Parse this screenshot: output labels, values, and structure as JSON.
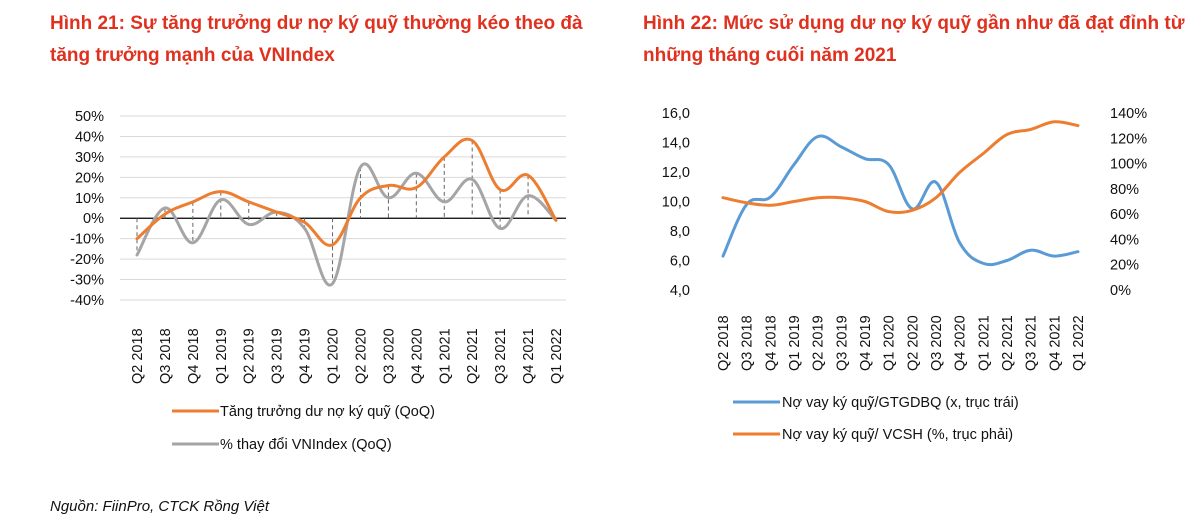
{
  "figures": {
    "left_title": "Hình 21: Sự tăng trưởng dư nợ ký quỹ thường kéo theo đà tăng trưởng mạnh của VNIndex",
    "right_title": "Hình 22: Mức sử dụng dư nợ ký quỹ gần như đã đạt đỉnh từ những tháng cuối năm 2021"
  },
  "source": "Nguồn: FiinPro, CTCK Rồng Việt",
  "colors": {
    "title": "#e0311f",
    "orange": "#ed7d31",
    "gray": "#a5a5a5",
    "blue": "#5b9bd5"
  },
  "chart_data": [
    {
      "type": "line",
      "title": "",
      "categories": [
        "Q2 2018",
        "Q3 2018",
        "Q4 2018",
        "Q1 2019",
        "Q2 2019",
        "Q3 2019",
        "Q4 2019",
        "Q1 2020",
        "Q2 2020",
        "Q3 2020",
        "Q4 2020",
        "Q1 2021",
        "Q2 2021",
        "Q3 2021",
        "Q4 2021",
        "Q1 2022"
      ],
      "y_ticks": [
        "50%",
        "40%",
        "30%",
        "20%",
        "10%",
        "0%",
        "-10%",
        "-20%",
        "-30%",
        "-40%"
      ],
      "ylim": [
        -40,
        50
      ],
      "drop_lines": true,
      "series": [
        {
          "name": "Tăng trưởng dư nợ ký quỹ (QoQ)",
          "color": "#ed7d31",
          "values": [
            -10,
            2,
            8,
            13,
            8,
            3,
            -2,
            -13,
            10,
            16,
            15,
            30,
            38,
            14,
            21,
            -1
          ]
        },
        {
          "name": "% thay đổi VNIndex (QoQ)",
          "color": "#a5a5a5",
          "values": [
            -18,
            5,
            -12,
            9,
            -3,
            3,
            -5,
            -32,
            25,
            10,
            22,
            8,
            19,
            -5,
            11,
            -1
          ]
        }
      ],
      "legend_position": "bottom"
    },
    {
      "type": "line",
      "title": "",
      "categories": [
        "Q2 2018",
        "Q3 2018",
        "Q4 2018",
        "Q1 2019",
        "Q2 2019",
        "Q3 2019",
        "Q4 2019",
        "Q1 2020",
        "Q2 2020",
        "Q3 2020",
        "Q4 2020",
        "Q1 2021",
        "Q2 2021",
        "Q3 2021",
        "Q4 2021",
        "Q1 2022"
      ],
      "y_left_ticks": [
        "16,0",
        "14,0",
        "12,0",
        "10,0",
        "8,0",
        "6,0",
        "4,0"
      ],
      "y_right_ticks": [
        "140%",
        "120%",
        "100%",
        "80%",
        "60%",
        "40%",
        "20%",
        "0%"
      ],
      "ylim_left": [
        4,
        16
      ],
      "ylim_right": [
        0,
        140
      ],
      "series": [
        {
          "name": "Nợ vay ký quỹ/GTGDBQ (x, trục trái)",
          "color": "#5b9bd5",
          "axis": "left",
          "values": [
            6.3,
            9.8,
            10.3,
            12.5,
            14.4,
            13.7,
            12.9,
            12.5,
            9.5,
            11.3,
            7.2,
            5.8,
            6.0,
            6.7,
            6.3,
            6.6
          ]
        },
        {
          "name": "Nợ vay ký quỹ/ VCSH (%, trục phải)",
          "color": "#ed7d31",
          "axis": "right",
          "values": [
            73,
            69,
            67,
            70,
            73,
            73,
            70,
            62,
            63,
            73,
            93,
            108,
            123,
            127,
            133,
            130
          ]
        }
      ],
      "legend_position": "bottom"
    }
  ]
}
